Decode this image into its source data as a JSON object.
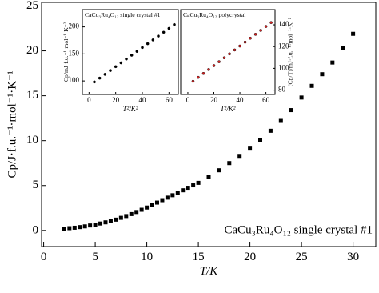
{
  "chart_data": [
    {
      "type": "scatter",
      "xlabel": "T/K",
      "ylabel": "Cp/J·f.u.⁻¹·mol⁻¹·K⁻¹",
      "annotation": "CaCu₃Ru₄O₁₂ single crystal #1",
      "marker": "square",
      "yaxis_side": "left",
      "xlim": [
        -0.2,
        32.2
      ],
      "ylim": [
        -1.8,
        25.4
      ],
      "xticks": [
        0,
        5,
        10,
        15,
        20,
        25,
        30
      ],
      "yticks": [
        0,
        5,
        10,
        15,
        20,
        25
      ],
      "x": [
        2,
        2.5,
        3,
        3.5,
        4,
        4.5,
        5,
        5.5,
        6,
        6.5,
        7,
        7.5,
        8,
        8.5,
        9,
        9.5,
        10,
        10.5,
        11,
        11.5,
        12,
        12.5,
        13,
        13.5,
        14,
        14.5,
        15,
        16,
        17,
        18,
        19,
        20,
        21,
        22,
        23,
        24,
        25,
        26,
        27,
        28,
        29,
        30
      ],
      "series": [
        {
          "color": "#000000",
          "values": [
            0.2,
            0.25,
            0.3,
            0.37,
            0.45,
            0.55,
            0.65,
            0.77,
            0.9,
            1.05,
            1.2,
            1.4,
            1.6,
            1.82,
            2.05,
            2.3,
            2.55,
            2.82,
            3.1,
            3.37,
            3.65,
            3.92,
            4.2,
            4.47,
            4.75,
            5.02,
            5.3,
            6.0,
            6.7,
            7.5,
            8.3,
            9.2,
            10.1,
            11.1,
            12.2,
            13.4,
            14.8,
            16.1,
            17.4,
            18.7,
            20.3,
            21.9
          ]
        }
      ]
    },
    {
      "type": "scatter",
      "title": "CaCu₃Ru₄O₁₂ single crystal #1",
      "xlabel": "T²/K²",
      "ylabel": "Cp/mJ·f.u.⁻¹·mol⁻¹·K⁻²",
      "marker": "circle",
      "yaxis_side": "left",
      "xlim": [
        -5,
        67
      ],
      "ylim": [
        75,
        232
      ],
      "xticks": [
        0,
        20,
        40,
        60
      ],
      "yticks": [
        100,
        150,
        200
      ],
      "x": [
        4,
        8,
        12,
        16,
        20,
        24,
        28,
        32,
        36,
        40,
        44,
        48,
        52,
        56,
        60,
        64
      ],
      "series": [
        {
          "color": "#000000",
          "values": [
            98.1,
            105.2,
            112.2,
            119.3,
            126.4,
            133.5,
            140.6,
            147.6,
            154.7,
            161.8,
            168.9,
            175.9,
            183,
            190.1,
            197.2,
            204.3
          ]
        }
      ]
    },
    {
      "type": "scatter",
      "title": "CaCu₃Ru₄O₁₂ polycrystal",
      "xlabel": "T²/K²",
      "ylabel": "(Cp/T)/mJ·f.u.⁻¹·mol⁻¹·K⁻²",
      "marker": "circle",
      "yaxis_side": "right",
      "xlim": [
        -5.5,
        67
      ],
      "ylim": [
        76,
        154
      ],
      "xticks": [
        0,
        20,
        40,
        60
      ],
      "yticks": [
        80,
        100,
        120,
        140
      ],
      "x": [
        4,
        8,
        12,
        16,
        20,
        24,
        28,
        32,
        36,
        40,
        44,
        48,
        52,
        56,
        60,
        64
      ],
      "series": [
        {
          "color": "#d62020",
          "values": [
            88.1,
            91.7,
            95.3,
            98.9,
            102.5,
            106.1,
            109.7,
            113.3,
            116.9,
            120.5,
            124.1,
            127.7,
            131.3,
            134.9,
            138.5,
            142.1
          ]
        }
      ]
    }
  ]
}
